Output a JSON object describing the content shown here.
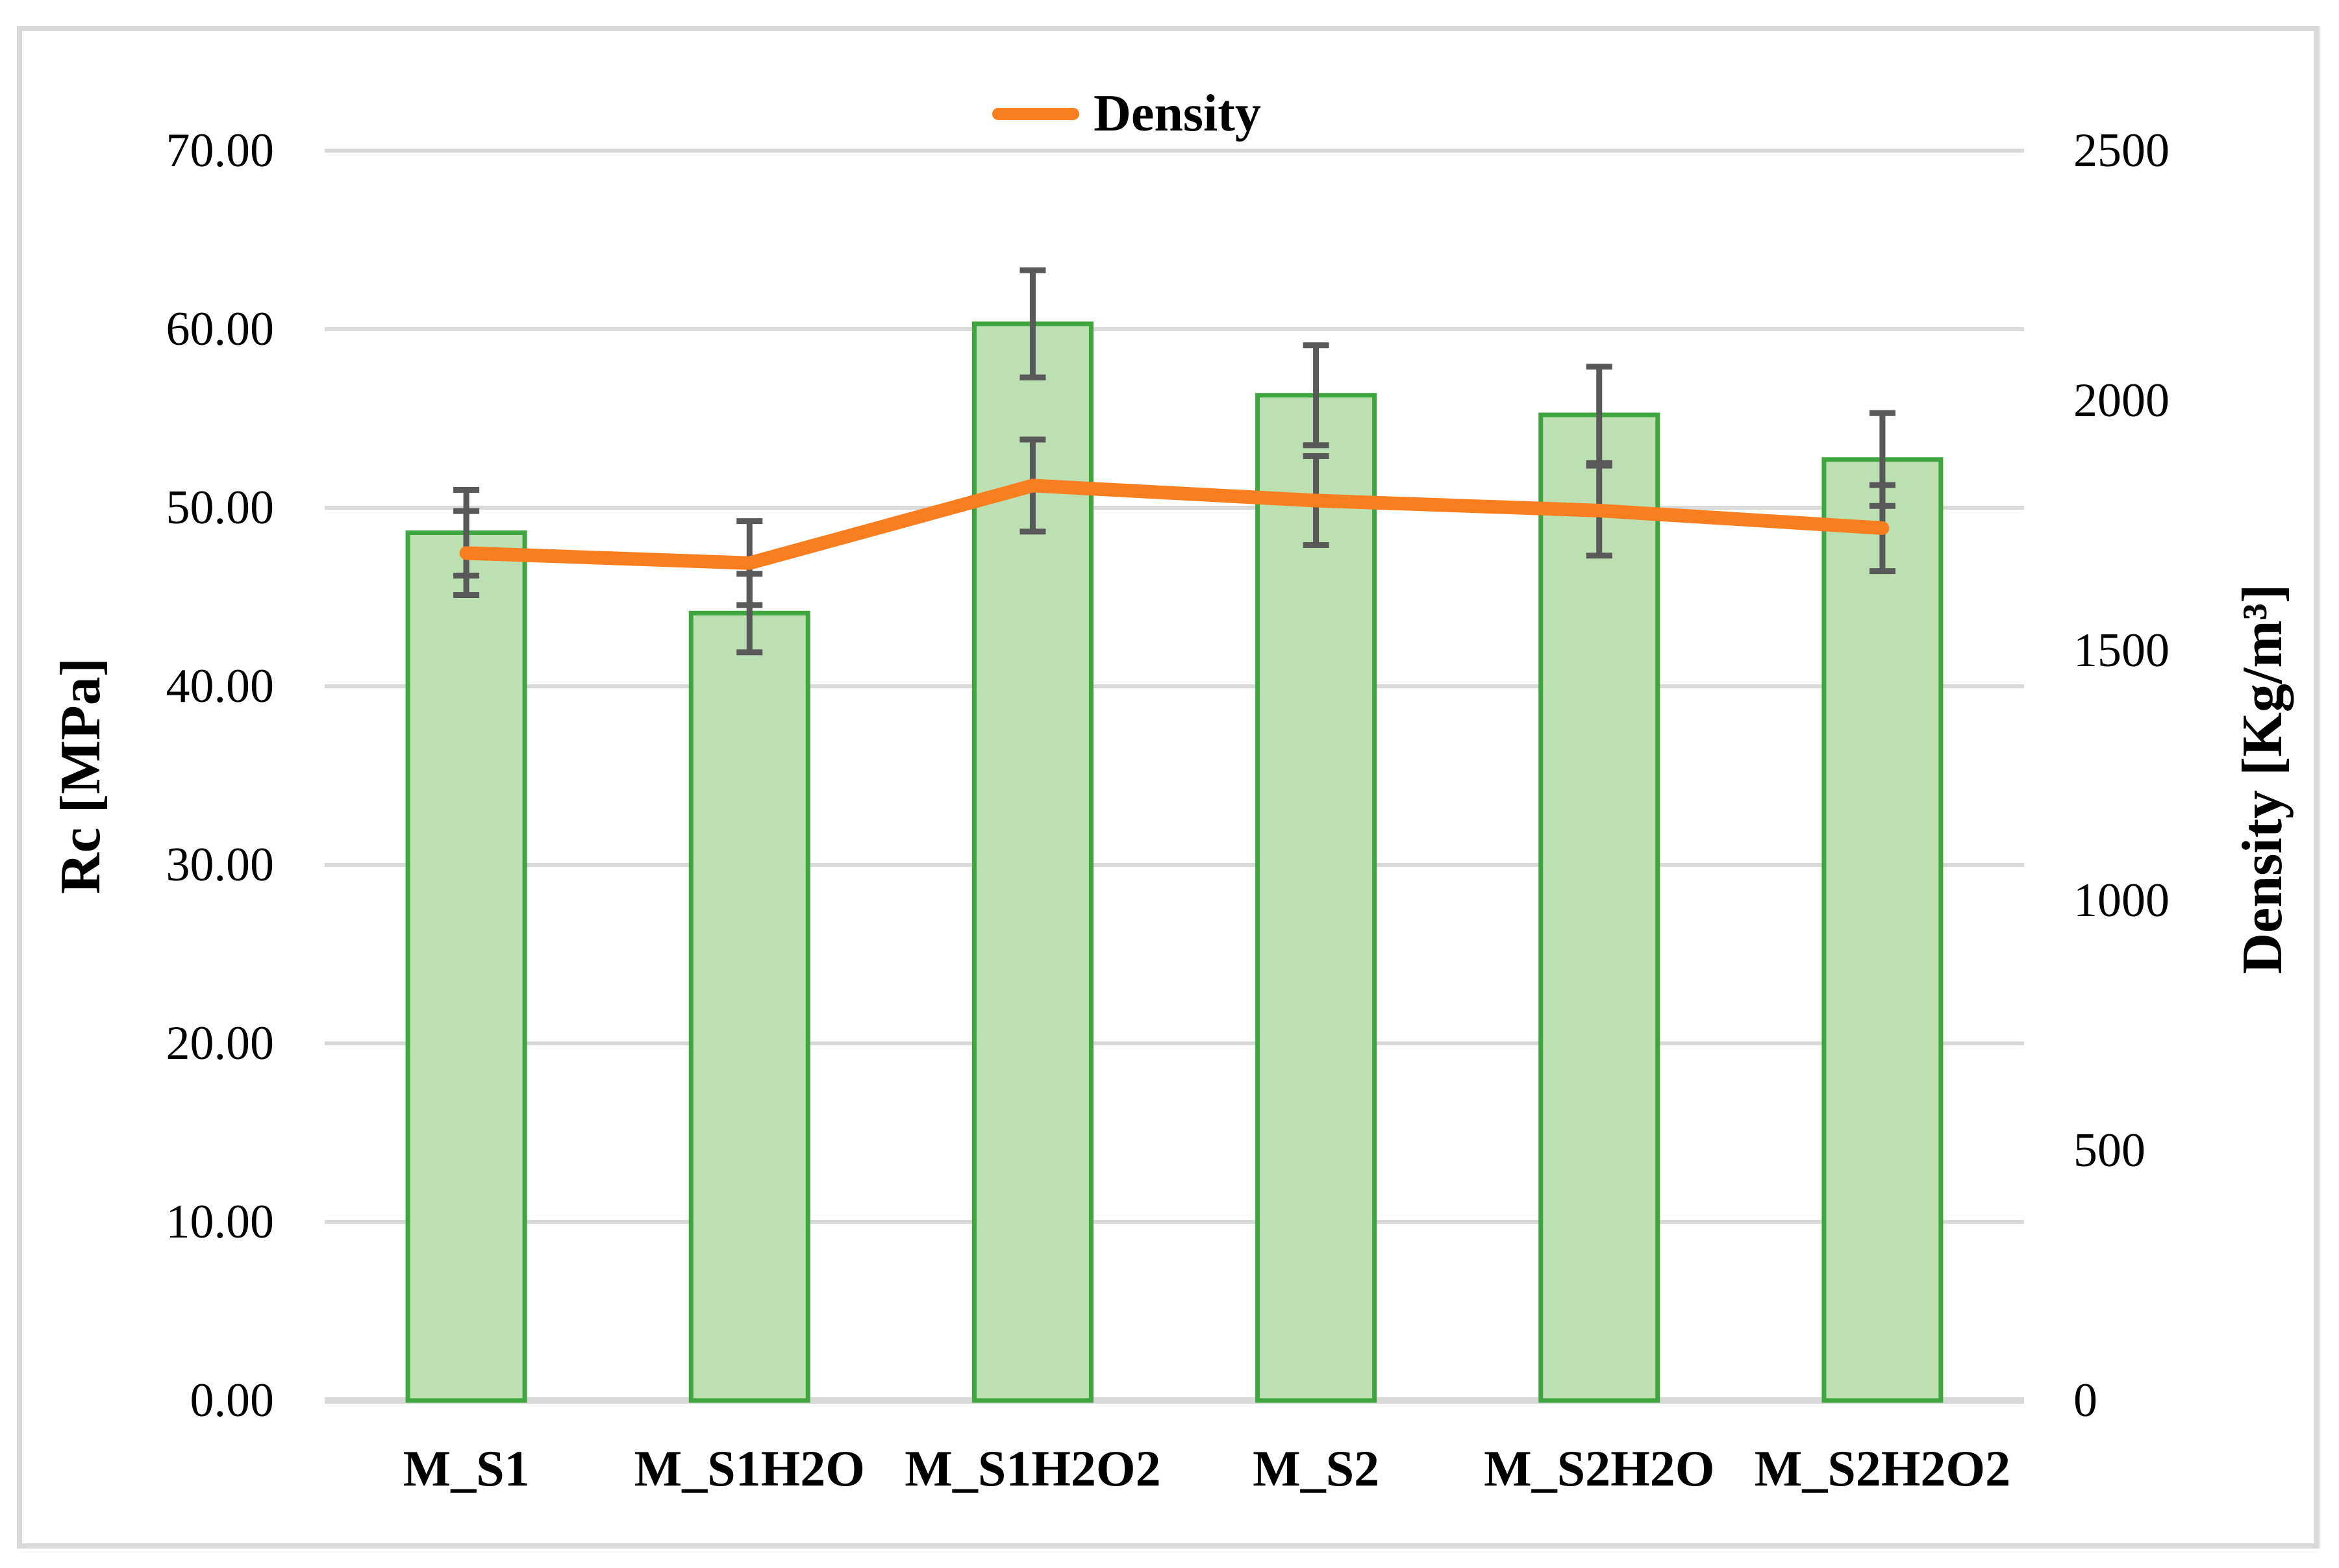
{
  "chart_data": {
    "type": "combo-bar-line",
    "categories": [
      "M_S1",
      "M_S1H2O",
      "M_S1H2O2",
      "M_S2",
      "M_S2H2O",
      "M_S2H2O2"
    ],
    "series": [
      {
        "name": "Rc",
        "type": "bar",
        "axis": "left",
        "values": [
          48.6,
          44.1,
          60.3,
          56.3,
          55.2,
          52.7
        ],
        "errors": [
          2.4,
          2.2,
          3.0,
          2.8,
          2.7,
          2.6
        ]
      },
      {
        "name": "Density",
        "type": "line",
        "axis": "right",
        "values": [
          1695,
          1675,
          1830,
          1800,
          1780,
          1745
        ],
        "errors": [
          84,
          84,
          92,
          89,
          90,
          86
        ]
      }
    ],
    "left_axis": {
      "title": "Rc [MPa]",
      "min": 0,
      "max": 70,
      "step": 10,
      "ticks": [
        "0.00",
        "10.00",
        "20.00",
        "30.00",
        "40.00",
        "50.00",
        "60.00",
        "70.00"
      ]
    },
    "right_axis": {
      "title": "Density [Kg/m³]",
      "min": 0,
      "max": 2500,
      "step": 500,
      "ticks": [
        "0",
        "500",
        "1000",
        "1500",
        "2000",
        "2500"
      ]
    },
    "legend": {
      "label": "Density",
      "position": "top-center"
    },
    "grid": true,
    "style": {
      "bar_fill": "#bce0b2",
      "bar_stroke": "#3fa63f",
      "accent": "#f97e20",
      "error_color": "#595959",
      "grid_color": "#d9d9d9"
    }
  }
}
